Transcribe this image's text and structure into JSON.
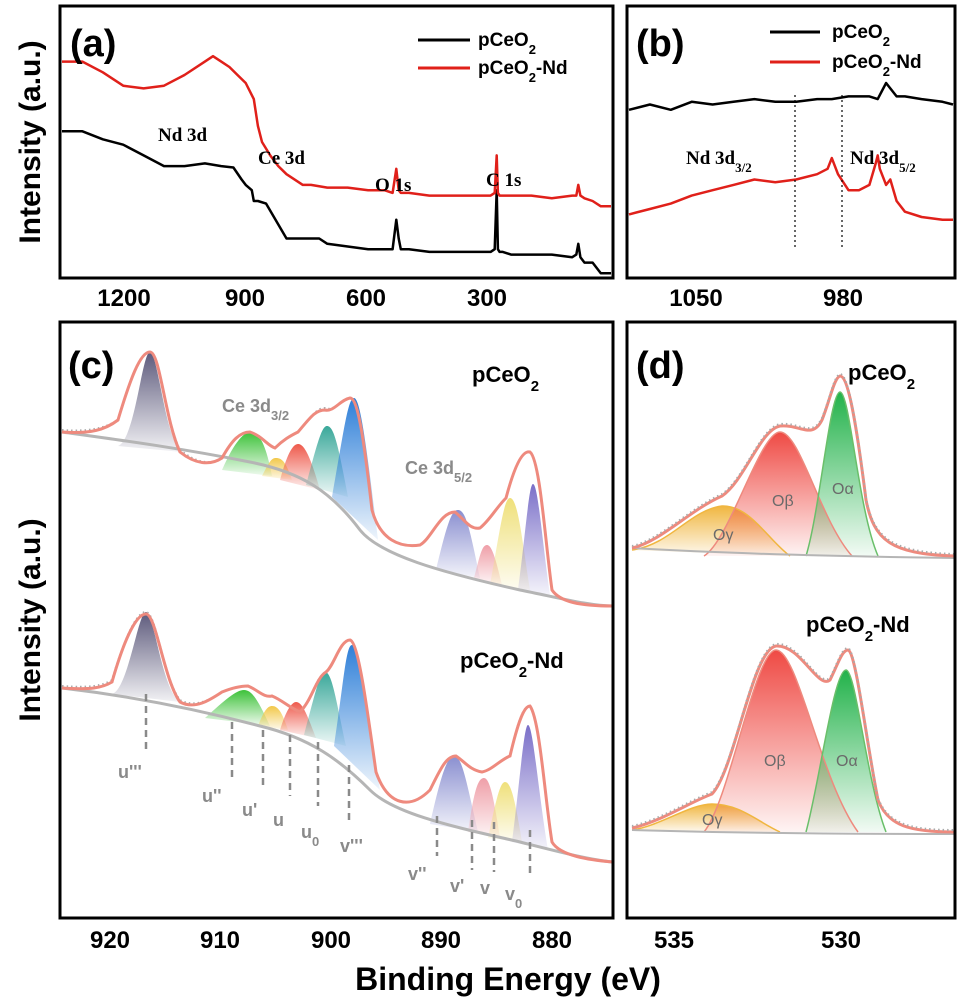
{
  "x_axis_label": "Binding Energy (eV)",
  "y_axis_label_top": "Intensity (a.u.)",
  "y_axis_label_bottom": "Intensity (a.u.)",
  "colors": {
    "pCeO2": "#000000",
    "pCeO2-Nd": "#e0201a",
    "envelope": "#ee8a7e",
    "background": "#b5b5b5",
    "marker": "#8a8a8a"
  },
  "chart_data": [
    {
      "panel": "(a)",
      "type": "line",
      "xlim": [
        1350,
        5
      ],
      "xticks": [
        1200,
        900,
        600,
        300
      ],
      "legend": {
        "position": "top-right",
        "entries": [
          {
            "text": "pCeO",
            "sub": "2",
            "suffix": ""
          },
          {
            "text": "pCeO",
            "sub": "2",
            "suffix": "-Nd"
          }
        ]
      },
      "annotations": [
        {
          "text": "Nd 3d",
          "x": 1000
        },
        {
          "text": "Ce 3d",
          "x": 860
        },
        {
          "text": "O 1s",
          "x": 530
        },
        {
          "text": "C 1s",
          "x": 285
        }
      ],
      "series": [
        {
          "name": "pCeO2",
          "x": [
            1350,
            1300,
            1250,
            1200,
            1150,
            1100,
            1050,
            1000,
            960,
            930,
            910,
            900,
            885,
            880,
            870,
            850,
            800,
            780,
            760,
            720,
            700,
            650,
            600,
            560,
            540,
            531,
            525,
            520,
            500,
            450,
            400,
            350,
            300,
            290,
            285,
            282,
            278,
            270,
            250,
            200,
            150,
            100,
            90,
            85,
            80,
            70,
            50,
            30,
            5
          ],
          "y": [
            0.46,
            0.46,
            0.49,
            0.51,
            0.55,
            0.59,
            0.59,
            0.58,
            0.59,
            0.595,
            0.64,
            0.66,
            0.68,
            0.72,
            0.72,
            0.73,
            0.86,
            0.86,
            0.86,
            0.86,
            0.88,
            0.89,
            0.9,
            0.9,
            0.9,
            0.79,
            0.86,
            0.9,
            0.9,
            0.91,
            0.91,
            0.91,
            0.91,
            0.9,
            0.68,
            0.9,
            0.91,
            0.91,
            0.92,
            0.92,
            0.92,
            0.93,
            0.92,
            0.88,
            0.93,
            0.95,
            0.95,
            0.99,
            0.99
          ]
        },
        {
          "name": "pCeO2-Nd",
          "x": [
            1350,
            1300,
            1250,
            1200,
            1150,
            1100,
            1050,
            1000,
            980,
            960,
            940,
            920,
            900,
            880,
            870,
            860,
            840,
            820,
            800,
            760,
            740,
            700,
            650,
            600,
            560,
            540,
            531,
            525,
            520,
            500,
            450,
            400,
            350,
            300,
            290,
            285,
            282,
            278,
            270,
            250,
            200,
            150,
            100,
            90,
            85,
            80,
            70,
            50,
            30,
            5
          ],
          "y": [
            0.2,
            0.2,
            0.24,
            0.29,
            0.3,
            0.29,
            0.25,
            0.2,
            0.18,
            0.2,
            0.22,
            0.25,
            0.28,
            0.34,
            0.44,
            0.5,
            0.55,
            0.59,
            0.62,
            0.66,
            0.66,
            0.67,
            0.67,
            0.68,
            0.68,
            0.69,
            0.6,
            0.68,
            0.69,
            0.69,
            0.7,
            0.7,
            0.7,
            0.7,
            0.69,
            0.55,
            0.69,
            0.7,
            0.7,
            0.7,
            0.7,
            0.71,
            0.7,
            0.7,
            0.66,
            0.7,
            0.71,
            0.72,
            0.74,
            0.74
          ]
        }
      ]
    },
    {
      "panel": "(b)",
      "type": "line",
      "xlim": [
        1100,
        945
      ],
      "xticks": [
        1050,
        980
      ],
      "legend": {
        "position": "top",
        "entries": [
          {
            "text": "pCeO",
            "sub": "2",
            "suffix": ""
          },
          {
            "text": "pCeO",
            "sub": "2",
            "suffix": "-Nd"
          }
        ]
      },
      "annotations": [
        {
          "text": "Nd 3d",
          "sub": "3/2",
          "x": 1003
        },
        {
          "text": "Nd 3d",
          "sub": "5/2",
          "x": 981
        }
      ],
      "reference_lines_x": [
        1003,
        981
      ],
      "series": [
        {
          "name": "pCeO2",
          "x": [
            1100,
            1090,
            1080,
            1070,
            1060,
            1050,
            1040,
            1030,
            1020,
            1010,
            1003,
            995,
            990,
            985,
            981,
            977,
            975,
            972,
            968,
            960,
            950,
            945
          ],
          "y": [
            0.38,
            0.36,
            0.38,
            0.35,
            0.36,
            0.35,
            0.34,
            0.35,
            0.35,
            0.34,
            0.34,
            0.33,
            0.33,
            0.33,
            0.34,
            0.28,
            0.3,
            0.33,
            0.33,
            0.34,
            0.35,
            0.36
          ]
        },
        {
          "name": "pCeO2-Nd",
          "x": [
            1100,
            1090,
            1080,
            1070,
            1060,
            1050,
            1040,
            1030,
            1020,
            1010,
            1005,
            1003,
            1000,
            995,
            990,
            985,
            982,
            981,
            980,
            977,
            975,
            972,
            968,
            960,
            950,
            945
          ],
          "y": [
            0.77,
            0.75,
            0.73,
            0.7,
            0.68,
            0.66,
            0.64,
            0.65,
            0.64,
            0.62,
            0.6,
            0.56,
            0.62,
            0.68,
            0.68,
            0.66,
            0.58,
            0.55,
            0.6,
            0.66,
            0.64,
            0.72,
            0.76,
            0.78,
            0.79,
            0.79
          ]
        }
      ]
    },
    {
      "panel": "(c)",
      "type": "area",
      "xlim": [
        925,
        875
      ],
      "xticks": [
        920,
        910,
        900,
        890,
        880
      ],
      "series_labels": [
        {
          "text": "pCeO",
          "sub": "2",
          "suffix": ""
        },
        {
          "text": "pCeO",
          "sub": "2",
          "suffix": "-Nd"
        }
      ],
      "region_labels": [
        {
          "text": "Ce 3d",
          "sub": "3/2",
          "x": 905
        },
        {
          "text": "Ce 3d",
          "sub": "5/2",
          "x": 887
        }
      ],
      "peak_markers": [
        {
          "label": "u'''",
          "x": 916.8
        },
        {
          "label": "u''",
          "x": 909.7
        },
        {
          "label": "u'",
          "x": 906.6
        },
        {
          "label": "u",
          "x": 904.2
        },
        {
          "label": "u",
          "sub": "0",
          "x": 901.5
        },
        {
          "label": "v'''",
          "x": 898.8
        },
        {
          "label": "v''",
          "x": 890.9
        },
        {
          "label": "v'",
          "x": 888.0
        },
        {
          "label": "v",
          "x": 885.6
        },
        {
          "label": "v",
          "sub": "0",
          "x": 882.4
        }
      ]
    },
    {
      "panel": "(d)",
      "type": "area",
      "xlim": [
        537.2,
        525.2
      ],
      "xticks": [
        535,
        530
      ],
      "series_labels": [
        {
          "text": "pCeO",
          "sub": "2",
          "suffix": ""
        },
        {
          "text": "pCeO",
          "sub": "2",
          "suffix": "-Nd"
        }
      ],
      "components": [
        "Oγ",
        "Oβ",
        "Oα"
      ],
      "component_positions": [
        533.2,
        531.0,
        529.0
      ]
    }
  ]
}
